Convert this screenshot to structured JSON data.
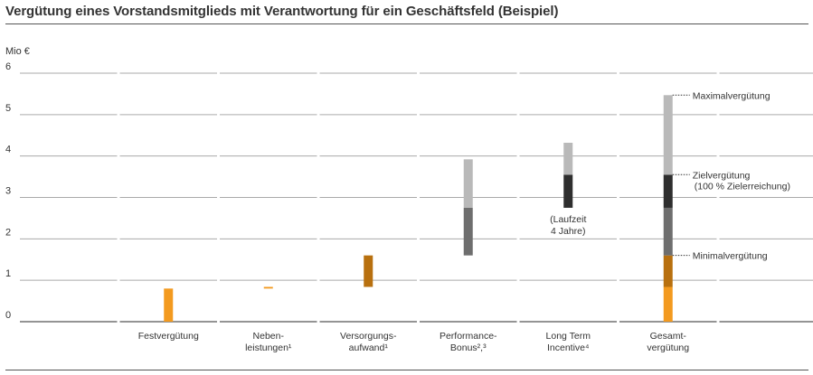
{
  "title": "Vergütung eines Vorstandsmitglieds mit Verantwortung für ein Geschäftsfeld (Beispiel)",
  "chart_data": {
    "type": "bar",
    "ylabel": "Mio €",
    "ylim": [
      0,
      6
    ],
    "yticks": [
      0,
      1,
      2,
      3,
      4,
      5,
      6
    ],
    "grid": true,
    "categories": [
      "",
      "Festvergütung",
      "Neben-\nleistungen¹",
      "Versorgungs-\naufwand¹",
      "Performance-\nBonus²,³",
      "Long Term\nIncentive⁴",
      "Gesamt-\nvergütung",
      ""
    ],
    "segments": [
      {
        "category": 1,
        "from": 0.0,
        "to": 0.8,
        "color": "#f39a1f"
      },
      {
        "category": 2,
        "from": 0.8,
        "to": 0.84,
        "color": "#f39a1f"
      },
      {
        "category": 3,
        "from": 0.84,
        "to": 1.6,
        "color": "#b8700f"
      },
      {
        "category": 4,
        "from": 1.6,
        "to": 2.75,
        "color": "#6e6e6e"
      },
      {
        "category": 4,
        "from": 2.75,
        "to": 3.92,
        "color": "#b9b9b9"
      },
      {
        "category": 5,
        "from": 2.75,
        "to": 3.55,
        "color": "#2e2e2e"
      },
      {
        "category": 5,
        "from": 3.55,
        "to": 4.32,
        "color": "#b9b9b9"
      },
      {
        "category": 6,
        "from": 0.0,
        "to": 0.84,
        "color": "#f39a1f"
      },
      {
        "category": 6,
        "from": 0.84,
        "to": 1.6,
        "color": "#b8700f"
      },
      {
        "category": 6,
        "from": 1.6,
        "to": 2.75,
        "color": "#6e6e6e"
      },
      {
        "category": 6,
        "from": 2.75,
        "to": 3.55,
        "color": "#2e2e2e"
      },
      {
        "category": 6,
        "from": 3.55,
        "to": 5.47,
        "color": "#b9b9b9"
      }
    ],
    "annotations": [
      {
        "category": 5,
        "text": "(Laufzeit\n4 Jahre)",
        "y": 2.4
      },
      {
        "category": 6,
        "text": "Maximalvergütung",
        "y": 5.47
      },
      {
        "category": 6,
        "text": "Zielvergütung\n(100 % Zielerreichung)",
        "y": 3.55
      },
      {
        "category": 6,
        "text": "Minimalvergütung",
        "y": 1.6
      }
    ]
  }
}
